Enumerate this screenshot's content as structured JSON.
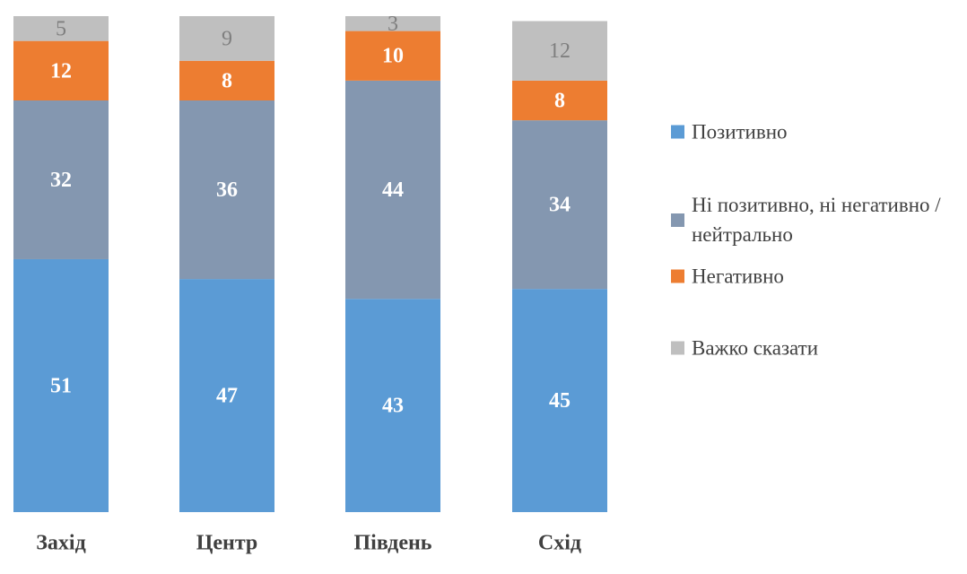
{
  "chart_data": {
    "type": "stacked_bar",
    "categories": [
      "Захід",
      "Центр",
      "Південь",
      "Схід"
    ],
    "series": [
      {
        "name": "Позитивно",
        "color": "#5b9bd5",
        "label_color": "#ffffff",
        "values": [
          51,
          47,
          43,
          45
        ]
      },
      {
        "name": "Ні позитивно, ні негативно / нейтрально",
        "color": "#8497b0",
        "label_color": "#ffffff",
        "values": [
          32,
          36,
          44,
          34
        ]
      },
      {
        "name": "Негативно",
        "color": "#ed7d31",
        "label_color": "#ffffff",
        "values": [
          12,
          8,
          10,
          8
        ]
      },
      {
        "name": "Важко сказати",
        "color": "#bfbfbf",
        "label_color": "#7f7f7f",
        "values": [
          5,
          9,
          3,
          12
        ]
      }
    ],
    "ylim": [
      0,
      100
    ],
    "legend": "right"
  }
}
